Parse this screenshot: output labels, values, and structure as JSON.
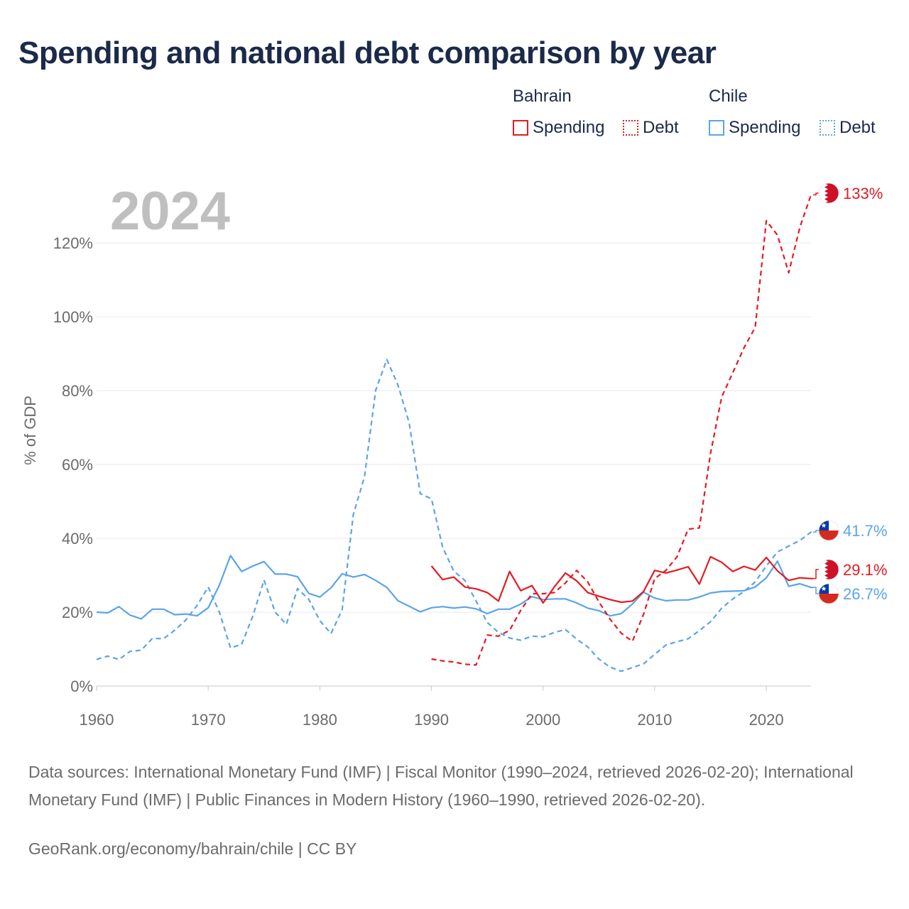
{
  "title": "Spending and national debt comparison by year",
  "legend": {
    "groups": [
      {
        "country": "Bahrain",
        "color": "#e31b23",
        "items": [
          "Spending",
          "Debt"
        ]
      },
      {
        "country": "Chile",
        "color": "#5ba4e6",
        "items": [
          "Spending",
          "Debt"
        ]
      }
    ]
  },
  "source_text": "Data sources: International Monetary Fund (IMF) | Fiscal Monitor (1990–2024, retrieved 2026-02-20); International Monetary Fund (IMF) | Public Finances in Modern History (1960–1990, retrieved 2026-02-20).",
  "source_link": "GeoRank.org/economy/bahrain/chile | CC BY",
  "chart_data": {
    "type": "line",
    "year_label": "2024",
    "ylabel": "% of GDP",
    "xlim": [
      1960,
      2024
    ],
    "ylim": [
      0,
      135
    ],
    "x_ticks": [
      "1960",
      "1970",
      "1980",
      "1990",
      "2000",
      "2010",
      "2020"
    ],
    "y_ticks": [
      "0%",
      "20%",
      "40%",
      "60%",
      "80%",
      "100%",
      "120%"
    ],
    "series": [
      {
        "name": "Bahrain Spending",
        "country": "Bahrain",
        "kind": "spending",
        "color": "#e31b23",
        "dashed": false,
        "end_label": "29.1%",
        "flag": "bahrain",
        "x": [
          1990,
          1991,
          1992,
          1993,
          1994,
          1995,
          1996,
          1997,
          1998,
          1999,
          2000,
          2001,
          2002,
          2003,
          2004,
          2005,
          2006,
          2007,
          2008,
          2009,
          2010,
          2011,
          2012,
          2013,
          2014,
          2015,
          2016,
          2017,
          2018,
          2019,
          2020,
          2021,
          2022,
          2023,
          2024
        ],
        "values": [
          32.5,
          28.8,
          29.5,
          26.8,
          26.3,
          25.3,
          23,
          31,
          25.8,
          27.2,
          22.5,
          26.8,
          30.6,
          28.5,
          25.3,
          24.3,
          23.4,
          22.7,
          23,
          25.6,
          31.3,
          30.6,
          31.4,
          32.3,
          27.6,
          35,
          33.5,
          31,
          32.4,
          31.4,
          34.8,
          31.2,
          28.6,
          29.3,
          29.1
        ]
      },
      {
        "name": "Bahrain Debt",
        "country": "Bahrain",
        "kind": "debt",
        "color": "#e31b23",
        "dashed": true,
        "end_label": "133%",
        "flag": "bahrain",
        "x": [
          1990,
          1991,
          1992,
          1993,
          1994,
          1995,
          1996,
          1997,
          1998,
          1999,
          2000,
          2001,
          2002,
          2003,
          2004,
          2005,
          2006,
          2007,
          2008,
          2009,
          2010,
          2011,
          2012,
          2013,
          2014,
          2015,
          2016,
          2017,
          2018,
          2019,
          2020,
          2021,
          2022,
          2023,
          2024
        ],
        "values": [
          7.3,
          6.8,
          6.5,
          5.9,
          5.7,
          13.8,
          13.5,
          15.1,
          20.5,
          25,
          25,
          25.3,
          27.9,
          31.3,
          28.2,
          22.8,
          18.1,
          14.3,
          12.1,
          19.4,
          29.1,
          31.3,
          35,
          42.5,
          42.8,
          63,
          78.3,
          84.9,
          91.6,
          97.1,
          126,
          122.1,
          111.9,
          124.2,
          133
        ]
      },
      {
        "name": "Chile Spending",
        "country": "Chile",
        "kind": "spending",
        "color": "#5ba4e6",
        "dashed": false,
        "end_label": "26.7%",
        "flag": "chile",
        "x": [
          1960,
          1961,
          1962,
          1963,
          1964,
          1965,
          1966,
          1967,
          1968,
          1969,
          1970,
          1971,
          1972,
          1973,
          1974,
          1975,
          1976,
          1977,
          1978,
          1979,
          1980,
          1981,
          1982,
          1983,
          1984,
          1985,
          1986,
          1987,
          1988,
          1989,
          1990,
          1991,
          1992,
          1993,
          1994,
          1995,
          1996,
          1997,
          1998,
          1999,
          2000,
          2001,
          2002,
          2003,
          2004,
          2005,
          2006,
          2007,
          2008,
          2009,
          2010,
          2011,
          2012,
          2013,
          2014,
          2015,
          2016,
          2017,
          2018,
          2019,
          2020,
          2021,
          2022,
          2023,
          2024
        ],
        "values": [
          20,
          19.8,
          21.5,
          19.2,
          18.2,
          20.8,
          20.8,
          19.3,
          19.5,
          19,
          21.2,
          27.3,
          35.3,
          31,
          32.5,
          33.7,
          30.3,
          30.3,
          29.6,
          25.1,
          24.1,
          26.6,
          30.4,
          29.5,
          30.2,
          28.6,
          26.7,
          23.1,
          21.6,
          20.1,
          21.2,
          21.5,
          21.1,
          21.4,
          20.9,
          19.6,
          20.8,
          20.8,
          22.2,
          24.2,
          23.4,
          23.6,
          23.6,
          22.5,
          21.1,
          20.4,
          19,
          19.6,
          22.2,
          25.4,
          23.8,
          23.1,
          23.3,
          23.3,
          24.1,
          25.2,
          25.6,
          25.7,
          25.8,
          26.8,
          29.3,
          33.8,
          27,
          27.7,
          26.7
        ]
      },
      {
        "name": "Chile Debt",
        "country": "Chile",
        "kind": "debt",
        "color": "#5ba4e6",
        "dashed": true,
        "end_label": "41.7%",
        "flag": "chile",
        "x": [
          1960,
          1961,
          1962,
          1963,
          1964,
          1965,
          1966,
          1967,
          1968,
          1969,
          1970,
          1971,
          1972,
          1973,
          1974,
          1975,
          1976,
          1977,
          1978,
          1979,
          1980,
          1981,
          1982,
          1983,
          1984,
          1985,
          1986,
          1987,
          1988,
          1989,
          1990,
          1991,
          1992,
          1993,
          1994,
          1995,
          1996,
          1997,
          1998,
          1999,
          2000,
          2001,
          2002,
          2003,
          2004,
          2005,
          2006,
          2007,
          2008,
          2009,
          2010,
          2011,
          2012,
          2013,
          2014,
          2015,
          2016,
          2017,
          2018,
          2019,
          2020,
          2021,
          2022,
          2023,
          2024
        ],
        "values": [
          7.2,
          8.1,
          7.2,
          9.4,
          9.7,
          12.9,
          12.8,
          15.1,
          17.9,
          21.8,
          26.8,
          20,
          10.3,
          11.3,
          19,
          28.7,
          20,
          16.7,
          26.4,
          23.5,
          17.7,
          14.2,
          20.7,
          46.4,
          56.7,
          80.1,
          88.4,
          81.5,
          71.3,
          52.1,
          50.7,
          37.6,
          31.1,
          28.6,
          23,
          17.2,
          14.5,
          13,
          12.4,
          13.5,
          13.3,
          14.5,
          15.3,
          12.7,
          10.6,
          7.3,
          5.1,
          4,
          5,
          6,
          8.6,
          11.1,
          12,
          12.8,
          15,
          17.4,
          21.1,
          23.6,
          25.6,
          28.2,
          32.5,
          36.3,
          37.9,
          39.4,
          41.7
        ]
      }
    ]
  }
}
